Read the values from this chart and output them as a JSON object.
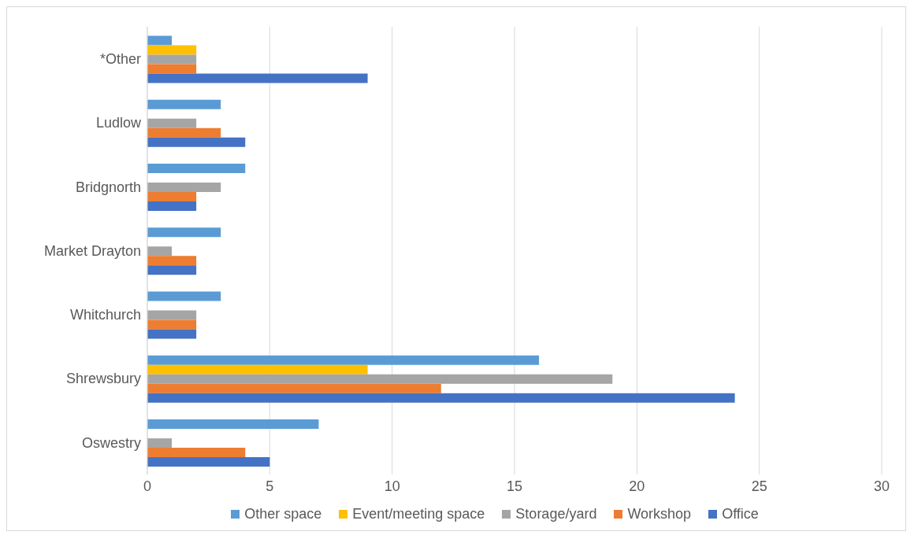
{
  "chart_data": {
    "type": "bar",
    "orientation": "horizontal",
    "categories": [
      "*Other",
      "Ludlow",
      "Bridgnorth",
      "Market Drayton",
      "Whitchurch",
      "Shrewsbury",
      "Oswestry"
    ],
    "series": [
      {
        "name": "Other space",
        "color": "#5b9bd5",
        "values": [
          1,
          3,
          4,
          3,
          3,
          16,
          7
        ]
      },
      {
        "name": "Event/meeting space",
        "color": "#ffc000",
        "values": [
          2,
          null,
          null,
          null,
          null,
          9,
          null
        ]
      },
      {
        "name": "Storage/yard",
        "color": "#a5a5a5",
        "values": [
          2,
          2,
          3,
          1,
          2,
          19,
          1
        ]
      },
      {
        "name": "Workshop",
        "color": "#ed7d31",
        "values": [
          2,
          3,
          2,
          2,
          2,
          12,
          4
        ]
      },
      {
        "name": "Office",
        "color": "#4472c4",
        "values": [
          9,
          4,
          2,
          2,
          2,
          24,
          5
        ]
      }
    ],
    "xlim": [
      0,
      30
    ],
    "xticks": [
      0,
      5,
      10,
      15,
      20,
      25,
      30
    ],
    "grid": "x",
    "legend": "bottom"
  }
}
